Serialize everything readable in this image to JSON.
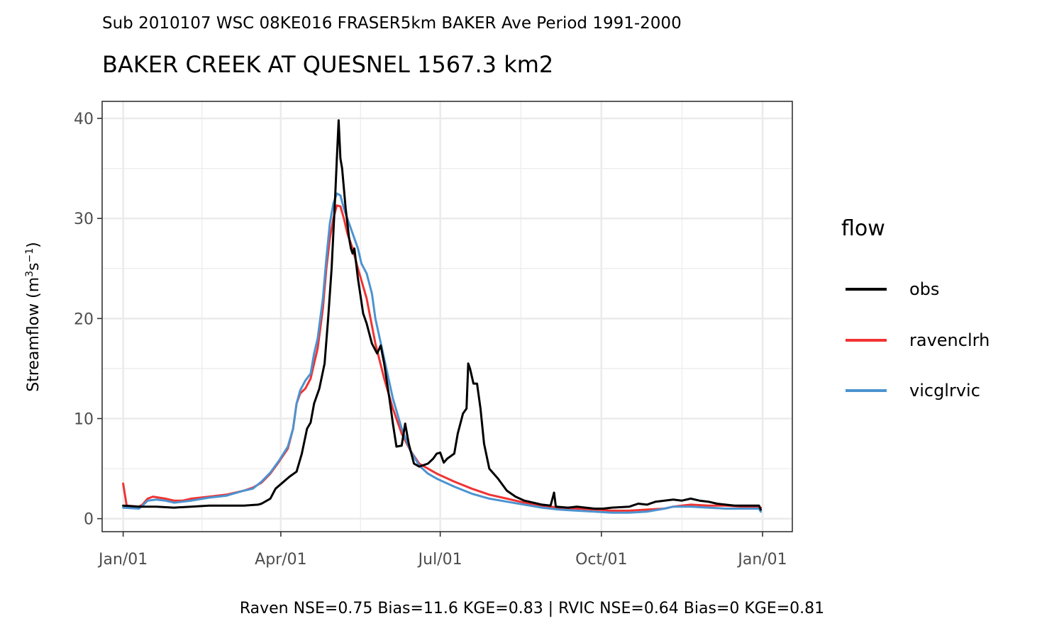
{
  "chart_data": {
    "type": "line",
    "subtitle": "Sub 2010107 WSC 08KE016 FRASER5km BAKER Ave Period 1991-2000",
    "title": "BAKER CREEK AT QUESNEL 1567.3 km2",
    "ylabel": "Streamflow (m",
    "ylabel_exp1": "3",
    "ylabel_mid": "s",
    "ylabel_exp2": "−1",
    "ylabel_end": ")",
    "caption": "Raven NSE=0.75 Bias=11.6 KGE=0.83 | RVIC NSE=0.64 Bias=0 KGE=0.81",
    "legend_title": "flow",
    "legend_position": "right",
    "grid": true,
    "x_ticks": [
      "Jan/01",
      "Apr/01",
      "Jul/01",
      "Oct/01",
      "Jan/01"
    ],
    "y_ticks": [
      "0",
      "10",
      "20",
      "30",
      "40"
    ],
    "ylim": [
      -1.3,
      41.7
    ],
    "xlim_day": [
      -11,
      383
    ],
    "series": [
      {
        "name": "obs",
        "color": "#000000",
        "points": [
          [
            1,
            1.3
          ],
          [
            10,
            1.2
          ],
          [
            20,
            1.2
          ],
          [
            30,
            1.1
          ],
          [
            40,
            1.2
          ],
          [
            50,
            1.3
          ],
          [
            60,
            1.3
          ],
          [
            70,
            1.3
          ],
          [
            78,
            1.4
          ],
          [
            80,
            1.5
          ],
          [
            85,
            2.0
          ],
          [
            88,
            3.0
          ],
          [
            92,
            3.6
          ],
          [
            96,
            4.2
          ],
          [
            100,
            4.7
          ],
          [
            103,
            6.5
          ],
          [
            106,
            9.0
          ],
          [
            108,
            9.6
          ],
          [
            110,
            11.5
          ],
          [
            113,
            13.0
          ],
          [
            116,
            15.5
          ],
          [
            118,
            20.0
          ],
          [
            120,
            25.0
          ],
          [
            122,
            32.0
          ],
          [
            123,
            36.0
          ],
          [
            124,
            39.8
          ],
          [
            125,
            36.0
          ],
          [
            126,
            35.0
          ],
          [
            127,
            33.0
          ],
          [
            128,
            31.0
          ],
          [
            130,
            28.0
          ],
          [
            131,
            27.0
          ],
          [
            132,
            26.5
          ],
          [
            133,
            27.0
          ],
          [
            135,
            24.0
          ],
          [
            138,
            20.5
          ],
          [
            140,
            19.5
          ],
          [
            143,
            17.5
          ],
          [
            146,
            16.5
          ],
          [
            148,
            17.3
          ],
          [
            150,
            15.5
          ],
          [
            153,
            12.0
          ],
          [
            155,
            9.5
          ],
          [
            157,
            7.2
          ],
          [
            160,
            7.3
          ],
          [
            162,
            9.5
          ],
          [
            164,
            7.5
          ],
          [
            167,
            5.5
          ],
          [
            170,
            5.2
          ],
          [
            175,
            5.5
          ],
          [
            178,
            6.0
          ],
          [
            180,
            6.5
          ],
          [
            182,
            6.6
          ],
          [
            184,
            5.6
          ],
          [
            186,
            6.0
          ],
          [
            190,
            6.5
          ],
          [
            192,
            8.5
          ],
          [
            195,
            10.5
          ],
          [
            197,
            11.0
          ],
          [
            198,
            15.5
          ],
          [
            199,
            15.0
          ],
          [
            201,
            13.5
          ],
          [
            203,
            13.5
          ],
          [
            205,
            11.0
          ],
          [
            207,
            7.5
          ],
          [
            210,
            5.0
          ],
          [
            215,
            4.0
          ],
          [
            220,
            2.8
          ],
          [
            225,
            2.2
          ],
          [
            230,
            1.8
          ],
          [
            240,
            1.4
          ],
          [
            245,
            1.3
          ],
          [
            247,
            2.6
          ],
          [
            248,
            1.2
          ],
          [
            255,
            1.1
          ],
          [
            260,
            1.2
          ],
          [
            270,
            1.0
          ],
          [
            275,
            1.0
          ],
          [
            280,
            1.1
          ],
          [
            290,
            1.2
          ],
          [
            295,
            1.5
          ],
          [
            300,
            1.4
          ],
          [
            305,
            1.7
          ],
          [
            310,
            1.8
          ],
          [
            315,
            1.9
          ],
          [
            320,
            1.8
          ],
          [
            325,
            2.0
          ],
          [
            330,
            1.8
          ],
          [
            335,
            1.7
          ],
          [
            340,
            1.5
          ],
          [
            350,
            1.3
          ],
          [
            360,
            1.3
          ],
          [
            364,
            1.3
          ],
          [
            365,
            0.9
          ]
        ]
      },
      {
        "name": "ravenclrh",
        "color": "#f03333",
        "points": [
          [
            1,
            3.5
          ],
          [
            3,
            1.3
          ],
          [
            10,
            1.2
          ],
          [
            12,
            1.4
          ],
          [
            15,
            2.0
          ],
          [
            18,
            2.2
          ],
          [
            25,
            2.0
          ],
          [
            30,
            1.8
          ],
          [
            35,
            1.8
          ],
          [
            40,
            2.0
          ],
          [
            50,
            2.2
          ],
          [
            60,
            2.4
          ],
          [
            70,
            2.8
          ],
          [
            75,
            3.1
          ],
          [
            80,
            3.6
          ],
          [
            85,
            4.5
          ],
          [
            90,
            5.7
          ],
          [
            95,
            7.0
          ],
          [
            98,
            9.0
          ],
          [
            100,
            11.5
          ],
          [
            102,
            12.5
          ],
          [
            105,
            13.0
          ],
          [
            108,
            14.0
          ],
          [
            110,
            15.5
          ],
          [
            112,
            17.0
          ],
          [
            115,
            21.0
          ],
          [
            117,
            25.0
          ],
          [
            119,
            28.0
          ],
          [
            121,
            30.0
          ],
          [
            123,
            31.3
          ],
          [
            125,
            31.2
          ],
          [
            127,
            30.0
          ],
          [
            129,
            28.5
          ],
          [
            132,
            27.0
          ],
          [
            135,
            25.0
          ],
          [
            140,
            22.0
          ],
          [
            145,
            17.5
          ],
          [
            150,
            14.0
          ],
          [
            155,
            11.0
          ],
          [
            160,
            8.5
          ],
          [
            165,
            6.8
          ],
          [
            170,
            5.5
          ],
          [
            175,
            5.0
          ],
          [
            180,
            4.5
          ],
          [
            190,
            3.7
          ],
          [
            200,
            3.0
          ],
          [
            210,
            2.4
          ],
          [
            220,
            2.0
          ],
          [
            230,
            1.6
          ],
          [
            240,
            1.3
          ],
          [
            250,
            1.1
          ],
          [
            260,
            1.0
          ],
          [
            270,
            0.9
          ],
          [
            280,
            0.8
          ],
          [
            290,
            0.8
          ],
          [
            300,
            0.9
          ],
          [
            310,
            1.0
          ],
          [
            315,
            1.2
          ],
          [
            320,
            1.3
          ],
          [
            325,
            1.4
          ],
          [
            335,
            1.3
          ],
          [
            345,
            1.3
          ],
          [
            355,
            1.2
          ],
          [
            365,
            1.1
          ]
        ]
      },
      {
        "name": "vicglrvic",
        "color": "#4c93d0",
        "points": [
          [
            1,
            1.1
          ],
          [
            10,
            1.0
          ],
          [
            12,
            1.3
          ],
          [
            15,
            1.8
          ],
          [
            20,
            1.9
          ],
          [
            25,
            1.8
          ],
          [
            30,
            1.6
          ],
          [
            40,
            1.8
          ],
          [
            50,
            2.1
          ],
          [
            60,
            2.3
          ],
          [
            70,
            2.8
          ],
          [
            75,
            3.0
          ],
          [
            80,
            3.7
          ],
          [
            85,
            4.6
          ],
          [
            90,
            5.8
          ],
          [
            95,
            7.2
          ],
          [
            98,
            9.0
          ],
          [
            100,
            11.5
          ],
          [
            102,
            12.8
          ],
          [
            105,
            13.8
          ],
          [
            108,
            14.5
          ],
          [
            110,
            16.5
          ],
          [
            112,
            18.0
          ],
          [
            115,
            22.0
          ],
          [
            117,
            26.0
          ],
          [
            119,
            29.5
          ],
          [
            121,
            31.5
          ],
          [
            123,
            32.5
          ],
          [
            125,
            32.3
          ],
          [
            127,
            31.0
          ],
          [
            129,
            30.0
          ],
          [
            132,
            28.5
          ],
          [
            135,
            27.0
          ],
          [
            137,
            25.5
          ],
          [
            140,
            24.5
          ],
          [
            143,
            22.5
          ],
          [
            145,
            20.0
          ],
          [
            150,
            16.0
          ],
          [
            155,
            12.0
          ],
          [
            160,
            9.0
          ],
          [
            165,
            6.8
          ],
          [
            170,
            5.3
          ],
          [
            175,
            4.5
          ],
          [
            180,
            4.0
          ],
          [
            190,
            3.2
          ],
          [
            200,
            2.5
          ],
          [
            210,
            2.0
          ],
          [
            220,
            1.7
          ],
          [
            230,
            1.4
          ],
          [
            240,
            1.1
          ],
          [
            250,
            0.9
          ],
          [
            260,
            0.8
          ],
          [
            270,
            0.7
          ],
          [
            280,
            0.6
          ],
          [
            290,
            0.6
          ],
          [
            300,
            0.7
          ],
          [
            310,
            1.0
          ],
          [
            315,
            1.2
          ],
          [
            320,
            1.2
          ],
          [
            325,
            1.2
          ],
          [
            335,
            1.1
          ],
          [
            345,
            1.0
          ],
          [
            355,
            1.0
          ],
          [
            364,
            1.0
          ],
          [
            365,
            0.7
          ]
        ]
      }
    ]
  }
}
